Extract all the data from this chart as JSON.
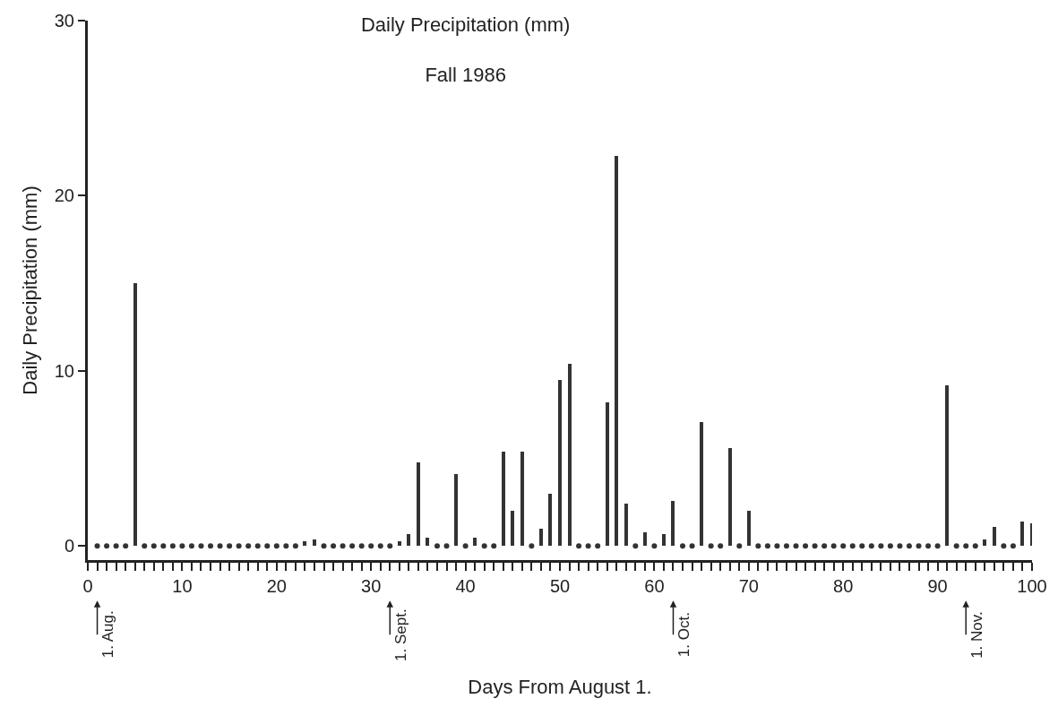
{
  "chart_data": {
    "type": "bar",
    "title": "Daily Precipitation (mm)",
    "subtitle": "Fall 1986",
    "xlabel": "Days From August 1.",
    "ylabel": "Daily Precipitation (mm)",
    "xlim": [
      0,
      100
    ],
    "ylim": [
      -0.8,
      30
    ],
    "xticks": [
      0,
      {
        "value": 1,
        "label": null
      },
      {
        "value": 2,
        "label": null
      },
      {
        "value": 3,
        "label": null
      },
      {
        "value": 4,
        "label": null
      },
      {
        "value": 5,
        "label": null
      },
      {
        "value": 6,
        "label": null
      },
      {
        "value": 7,
        "label": null
      },
      {
        "value": 8,
        "label": null
      },
      {
        "value": 9,
        "label": null
      },
      10,
      {
        "value": 11,
        "label": null
      },
      {
        "value": 12,
        "label": null
      },
      {
        "value": 13,
        "label": null
      },
      {
        "value": 14,
        "label": null
      },
      {
        "value": 15,
        "label": null
      },
      {
        "value": 16,
        "label": null
      },
      {
        "value": 17,
        "label": null
      },
      {
        "value": 18,
        "label": null
      },
      {
        "value": 19,
        "label": null
      },
      20,
      {
        "value": 21,
        "label": null
      },
      {
        "value": 22,
        "label": null
      },
      {
        "value": 23,
        "label": null
      },
      {
        "value": 24,
        "label": null
      },
      {
        "value": 25,
        "label": null
      },
      {
        "value": 26,
        "label": null
      },
      {
        "value": 27,
        "label": null
      },
      {
        "value": 28,
        "label": null
      },
      {
        "value": 29,
        "label": null
      },
      30,
      {
        "value": 31,
        "label": null
      },
      {
        "value": 32,
        "label": null
      },
      {
        "value": 33,
        "label": null
      },
      {
        "value": 34,
        "label": null
      },
      {
        "value": 35,
        "label": null
      },
      {
        "value": 36,
        "label": null
      },
      {
        "value": 37,
        "label": null
      },
      {
        "value": 38,
        "label": null
      },
      {
        "value": 39,
        "label": null
      },
      40,
      {
        "value": 41,
        "label": null
      },
      {
        "value": 42,
        "label": null
      },
      {
        "value": 43,
        "label": null
      },
      {
        "value": 44,
        "label": null
      },
      {
        "value": 45,
        "label": null
      },
      {
        "value": 46,
        "label": null
      },
      {
        "value": 47,
        "label": null
      },
      {
        "value": 48,
        "label": null
      },
      {
        "value": 49,
        "label": null
      },
      50,
      {
        "value": 51,
        "label": null
      },
      {
        "value": 52,
        "label": null
      },
      {
        "value": 53,
        "label": null
      },
      {
        "value": 54,
        "label": null
      },
      {
        "value": 55,
        "label": null
      },
      {
        "value": 56,
        "label": null
      },
      {
        "value": 57,
        "label": null
      },
      {
        "value": 58,
        "label": null
      },
      {
        "value": 59,
        "label": null
      },
      60,
      {
        "value": 61,
        "label": null
      },
      {
        "value": 62,
        "label": null
      },
      {
        "value": 63,
        "label": null
      },
      {
        "value": 64,
        "label": null
      },
      {
        "value": 65,
        "label": null
      },
      {
        "value": 66,
        "label": null
      },
      {
        "value": 67,
        "label": null
      },
      {
        "value": 68,
        "label": null
      },
      {
        "value": 69,
        "label": null
      },
      70,
      {
        "value": 71,
        "label": null
      },
      {
        "value": 72,
        "label": null
      },
      {
        "value": 73,
        "label": null
      },
      {
        "value": 74,
        "label": null
      },
      {
        "value": 75,
        "label": null
      },
      {
        "value": 76,
        "label": null
      },
      {
        "value": 77,
        "label": null
      },
      {
        "value": 78,
        "label": null
      },
      {
        "value": 79,
        "label": null
      },
      80,
      {
        "value": 81,
        "label": null
      },
      {
        "value": 82,
        "label": null
      },
      {
        "value": 83,
        "label": null
      },
      {
        "value": 84,
        "label": null
      },
      {
        "value": 85,
        "label": null
      },
      {
        "value": 86,
        "label": null
      },
      {
        "value": 87,
        "label": null
      },
      {
        "value": 88,
        "label": null
      },
      {
        "value": 89,
        "label": null
      },
      90,
      {
        "value": 91,
        "label": null
      },
      {
        "value": 92,
        "label": null
      },
      {
        "value": 93,
        "label": null
      },
      {
        "value": 94,
        "label": null
      },
      {
        "value": 95,
        "label": null
      },
      {
        "value": 96,
        "label": null
      },
      {
        "value": 97,
        "label": null
      },
      {
        "value": 98,
        "label": null
      },
      {
        "value": 99,
        "label": null
      },
      100
    ],
    "yticks": [
      0,
      10,
      20,
      30
    ],
    "series": [
      {
        "color": "#333333",
        "x": [
          5,
          23,
          24,
          33,
          34,
          35,
          36,
          39,
          41,
          44,
          45,
          46,
          48,
          49,
          50,
          51,
          55,
          56,
          57,
          59,
          61,
          62,
          65,
          68,
          70,
          91,
          95,
          96,
          99,
          100
        ],
        "values": [
          15.0,
          0.3,
          0.4,
          0.3,
          0.7,
          4.8,
          0.5,
          4.1,
          0.5,
          5.4,
          2.0,
          5.4,
          1.0,
          3.0,
          9.5,
          10.4,
          8.2,
          22.3,
          2.4,
          0.8,
          0.7,
          2.6,
          7.1,
          5.6,
          2.0,
          9.2,
          0.4,
          1.1,
          1.4,
          1.3
        ]
      },
      {
        "type": "scatter",
        "marker": "circle",
        "color": "#333333",
        "x": [
          1,
          2,
          3,
          4,
          6,
          7,
          8,
          9,
          10,
          11,
          12,
          13,
          14,
          15,
          16,
          17,
          18,
          19,
          20,
          21,
          22,
          25,
          26,
          27,
          28,
          29,
          30,
          31,
          32,
          37,
          38,
          40,
          42,
          43,
          47,
          52,
          53,
          54,
          58,
          60,
          63,
          64,
          66,
          67,
          69,
          71,
          72,
          73,
          74,
          75,
          76,
          77,
          78,
          79,
          80,
          81,
          82,
          83,
          84,
          85,
          86,
          87,
          88,
          89,
          90,
          92,
          93,
          94,
          97,
          98
        ],
        "values": [
          0,
          0,
          0,
          0,
          0,
          0,
          0,
          0,
          0,
          0,
          0,
          0,
          0,
          0,
          0,
          0,
          0,
          0,
          0,
          0,
          0,
          0,
          0,
          0,
          0,
          0,
          0,
          0,
          0,
          0,
          0,
          0,
          0,
          0,
          0,
          0,
          0,
          0,
          0,
          0,
          0,
          0,
          0,
          0,
          0,
          0,
          0,
          0,
          0,
          0,
          0,
          0,
          0,
          0,
          0,
          0,
          0,
          0,
          0,
          0,
          0,
          0,
          0,
          0,
          0,
          0,
          0,
          0,
          0,
          0
        ]
      }
    ],
    "ref_lines": [
      {
        "axis": "x",
        "value": 1,
        "label": "1. Aug."
      },
      {
        "axis": "x",
        "value": 32,
        "label": "1. Sept."
      },
      {
        "axis": "x",
        "value": 62,
        "label": "1. Oct."
      },
      {
        "axis": "x",
        "value": 93,
        "label": "1. Nov."
      }
    ]
  }
}
